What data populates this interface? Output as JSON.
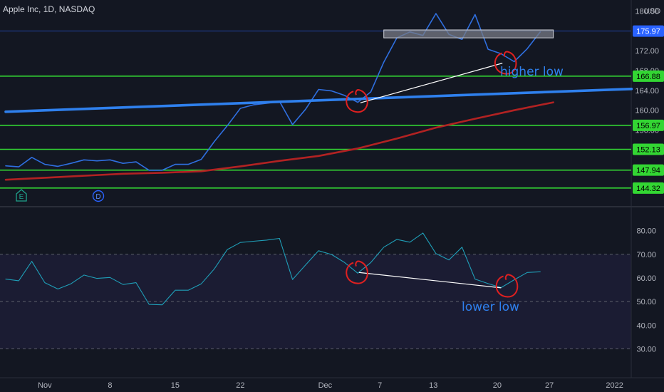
{
  "header": {
    "title": "Apple Inc, 1D, NASDAQ"
  },
  "colors": {
    "background": "#131722",
    "price_line": "#2f6fe0",
    "ma_line": "#b22222",
    "trend_line": "#2f80ed",
    "level_line": "#33d633",
    "rsi_line": "#1f9fb8",
    "rsi_band": "#1b1c33",
    "annotation": "#e02020",
    "annotation_line": "#ffffff",
    "note_text": "#2f80ed",
    "current_price_bg": "#2962ff"
  },
  "chart_data": [
    {
      "type": "line",
      "title": "Apple Inc, 1D, NASDAQ",
      "currency": "USD",
      "ylim": [
        178.5,
        142.0
      ],
      "y_ticks": [
        "180.00",
        "176.00",
        "172.00",
        "168.00",
        "164.00",
        "160.00",
        "156.00",
        "152.00",
        "148.00"
      ],
      "x_ticks": [
        {
          "label": "Nov",
          "x": 3
        },
        {
          "label": "8",
          "x": 8
        },
        {
          "label": "15",
          "x": 13
        },
        {
          "label": "22",
          "x": 18
        },
        {
          "label": "Dec",
          "x": 24.5
        },
        {
          "label": "7",
          "x": 28.7
        },
        {
          "label": "13",
          "x": 32.8
        },
        {
          "label": "20",
          "x": 37.7
        },
        {
          "label": "27",
          "x": 41.7
        },
        {
          "label": "2022",
          "x": 46.7
        }
      ],
      "series": [
        {
          "role": "price",
          "x": [
            0,
            1,
            2,
            3,
            4,
            5,
            6,
            7,
            8,
            9,
            10,
            11,
            12,
            13,
            14,
            15,
            16,
            17,
            18,
            19,
            20,
            21,
            22,
            23,
            24,
            25,
            26,
            27,
            28,
            29,
            30,
            31,
            32,
            33,
            34,
            35,
            36,
            37,
            38,
            39,
            40,
            41
          ],
          "values": [
            148.8,
            148.6,
            150.5,
            149.1,
            148.7,
            149.3,
            150.0,
            149.8,
            150.0,
            149.3,
            149.6,
            147.9,
            147.9,
            149.1,
            149.1,
            150.1,
            153.7,
            156.9,
            160.4,
            161.1,
            161.4,
            161.8,
            157.1,
            160.2,
            164.2,
            163.9,
            163.0,
            161.6,
            163.7,
            169.7,
            174.6,
            175.8,
            175.1,
            179.5,
            175.3,
            174.3,
            179.3,
            172.3,
            171.4,
            169.8,
            172.4,
            175.8
          ]
        },
        {
          "role": "moving-average",
          "x": [
            0,
            3,
            6,
            9,
            12,
            15,
            18,
            21,
            24,
            27,
            30,
            33,
            36,
            39,
            42
          ],
          "values": [
            146.0,
            146.4,
            146.8,
            147.2,
            147.4,
            147.7,
            148.7,
            149.8,
            150.8,
            152.3,
            154.3,
            156.5,
            158.3,
            160.0,
            161.6
          ]
        },
        {
          "role": "trendline",
          "x": [
            0,
            48
          ],
          "values": [
            159.7,
            164.3
          ]
        }
      ],
      "levels": [
        {
          "value": 166.88,
          "label": "166.88"
        },
        {
          "value": 156.97,
          "label": "156.97"
        },
        {
          "value": 152.13,
          "label": "152.13"
        },
        {
          "value": 147.94,
          "label": "147.94"
        },
        {
          "value": 144.32,
          "label": "144.32"
        }
      ],
      "current_price": {
        "value": 175.97,
        "label": "175.97"
      },
      "resistance_box": {
        "x": [
          29,
          42
        ],
        "y": [
          174.6,
          176.2
        ]
      },
      "divergence_line": {
        "x": [
          27.2,
          38.1
        ],
        "y": [
          161.5,
          169.5
        ]
      },
      "circles": [
        {
          "x": 27,
          "y": 161.8
        },
        {
          "x": 38.4,
          "y": 169.5
        }
      ],
      "note": "higher low",
      "events": [
        "E",
        "D"
      ]
    },
    {
      "type": "line",
      "role": "rsi",
      "ylim": [
        85,
        25
      ],
      "y_ticks": [
        "80.00",
        "70.00",
        "60.00",
        "50.00",
        "40.00",
        "30.00"
      ],
      "band": [
        30,
        70
      ],
      "midline": 50,
      "series": [
        {
          "x": [
            0,
            1,
            2,
            3,
            4,
            5,
            6,
            7,
            8,
            9,
            10,
            11,
            12,
            13,
            14,
            15,
            16,
            17,
            18,
            19,
            20,
            21,
            22,
            23,
            24,
            25,
            26,
            27,
            28,
            29,
            30,
            31,
            32,
            33,
            34,
            35,
            36,
            37,
            38,
            39,
            40,
            41
          ],
          "values": [
            59.5,
            58.8,
            67.0,
            58.0,
            55.3,
            57.5,
            61.2,
            59.8,
            60.2,
            57.2,
            58.0,
            48.8,
            48.6,
            54.8,
            54.8,
            57.5,
            63.8,
            72.0,
            75.0,
            75.5,
            76.0,
            76.7,
            59.3,
            65.5,
            71.5,
            69.9,
            66.5,
            62.0,
            66.5,
            73.0,
            76.3,
            75.1,
            79.0,
            70.3,
            67.6,
            73.0,
            59.5,
            57.6,
            55.9,
            59.2,
            62.3,
            62.6
          ]
        }
      ],
      "divergence_line": {
        "x": [
          27.1,
          38.0
        ],
        "y": [
          62.3,
          55.8
        ]
      },
      "circles": [
        {
          "x": 27,
          "y": 62.2
        },
        {
          "x": 38.5,
          "y": 56.5
        }
      ],
      "note": "lower low"
    }
  ]
}
